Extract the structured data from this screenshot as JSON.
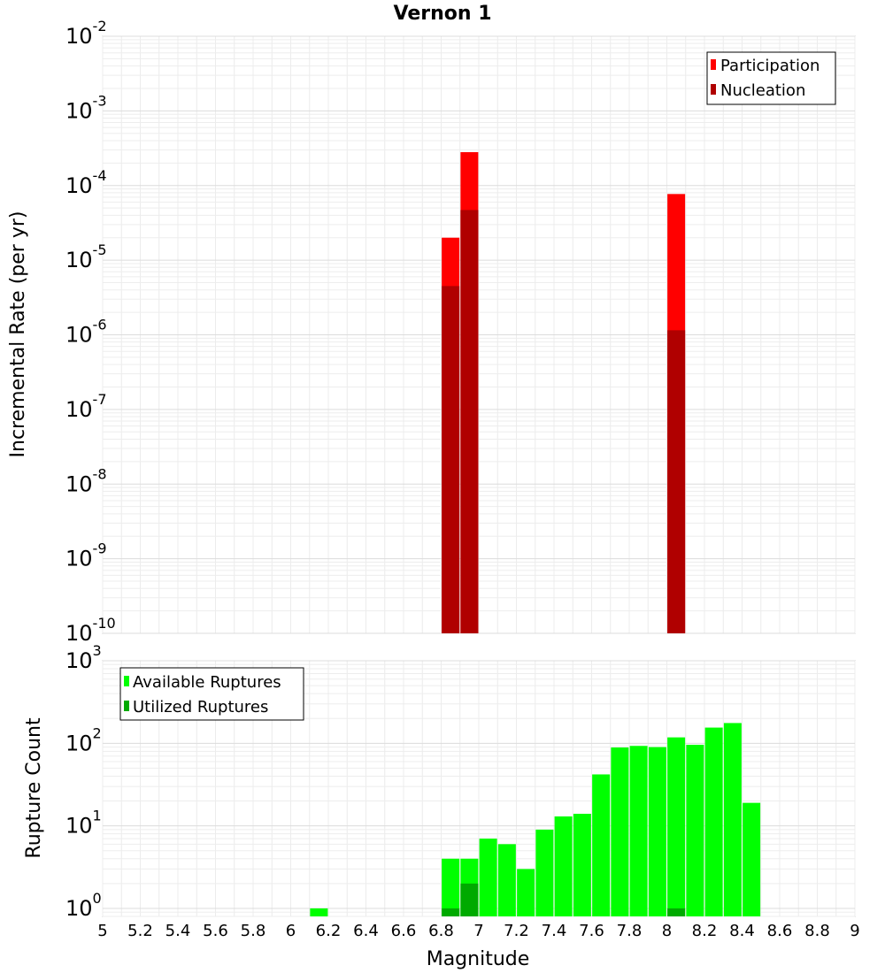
{
  "chart_data": [
    {
      "type": "bar",
      "title": "Vernon 1",
      "ylabel": "Incremental Rate (per yr)",
      "yscale": "log",
      "ylim": [
        1e-10,
        0.01
      ],
      "xlim": [
        5,
        9
      ],
      "grid": true,
      "legend_position": "top-right",
      "ytick_labels": [
        {
          "base": "10",
          "exp": "-10"
        },
        {
          "base": "10",
          "exp": "-9"
        },
        {
          "base": "10",
          "exp": "-8"
        },
        {
          "base": "10",
          "exp": "-7"
        },
        {
          "base": "10",
          "exp": "-6"
        },
        {
          "base": "10",
          "exp": "-5"
        },
        {
          "base": "10",
          "exp": "-4"
        },
        {
          "base": "10",
          "exp": "-3"
        },
        {
          "base": "10",
          "exp": "-2"
        }
      ],
      "series": [
        {
          "name": "Participation",
          "color": "#ff0000",
          "x": [
            6.85,
            6.95,
            8.05
          ],
          "values": [
            2e-05,
            0.00028,
            7.7e-05
          ]
        },
        {
          "name": "Nucleation",
          "color": "#b00000",
          "x": [
            6.85,
            6.95,
            8.05
          ],
          "values": [
            4.5e-06,
            4.7e-05,
            1.15e-06
          ]
        }
      ]
    },
    {
      "type": "bar",
      "xlabel": "Magnitude",
      "ylabel": "Rupture Count",
      "yscale": "log",
      "ylim": [
        0.8,
        1000
      ],
      "xlim": [
        5,
        9
      ],
      "grid": true,
      "legend_position": "top-left",
      "ytick_labels": [
        {
          "base": "10",
          "exp": "0"
        },
        {
          "base": "10",
          "exp": "1"
        },
        {
          "base": "10",
          "exp": "2"
        },
        {
          "base": "10",
          "exp": "3"
        }
      ],
      "xtick_labels": [
        "5",
        "5.2",
        "5.4",
        "5.6",
        "5.8",
        "6",
        "6.2",
        "6.4",
        "6.6",
        "6.8",
        "7",
        "7.2",
        "7.4",
        "7.6",
        "7.8",
        "8",
        "8.2",
        "8.4",
        "8.6",
        "8.8",
        "9"
      ],
      "series": [
        {
          "name": "Available Ruptures",
          "color": "#00ff00",
          "x": [
            6.15,
            6.85,
            6.95,
            7.05,
            7.15,
            7.25,
            7.35,
            7.45,
            7.55,
            7.65,
            7.75,
            7.85,
            7.95,
            8.05,
            8.15,
            8.25,
            8.35,
            8.45
          ],
          "values": [
            1,
            4,
            4,
            7,
            6,
            3,
            9,
            13,
            14,
            42,
            89,
            93,
            90,
            118,
            96,
            155,
            176,
            19
          ]
        },
        {
          "name": "Utilized Ruptures",
          "color": "#00aa00",
          "x": [
            6.85,
            6.95,
            8.05
          ],
          "values": [
            1,
            2,
            1
          ]
        }
      ]
    }
  ]
}
